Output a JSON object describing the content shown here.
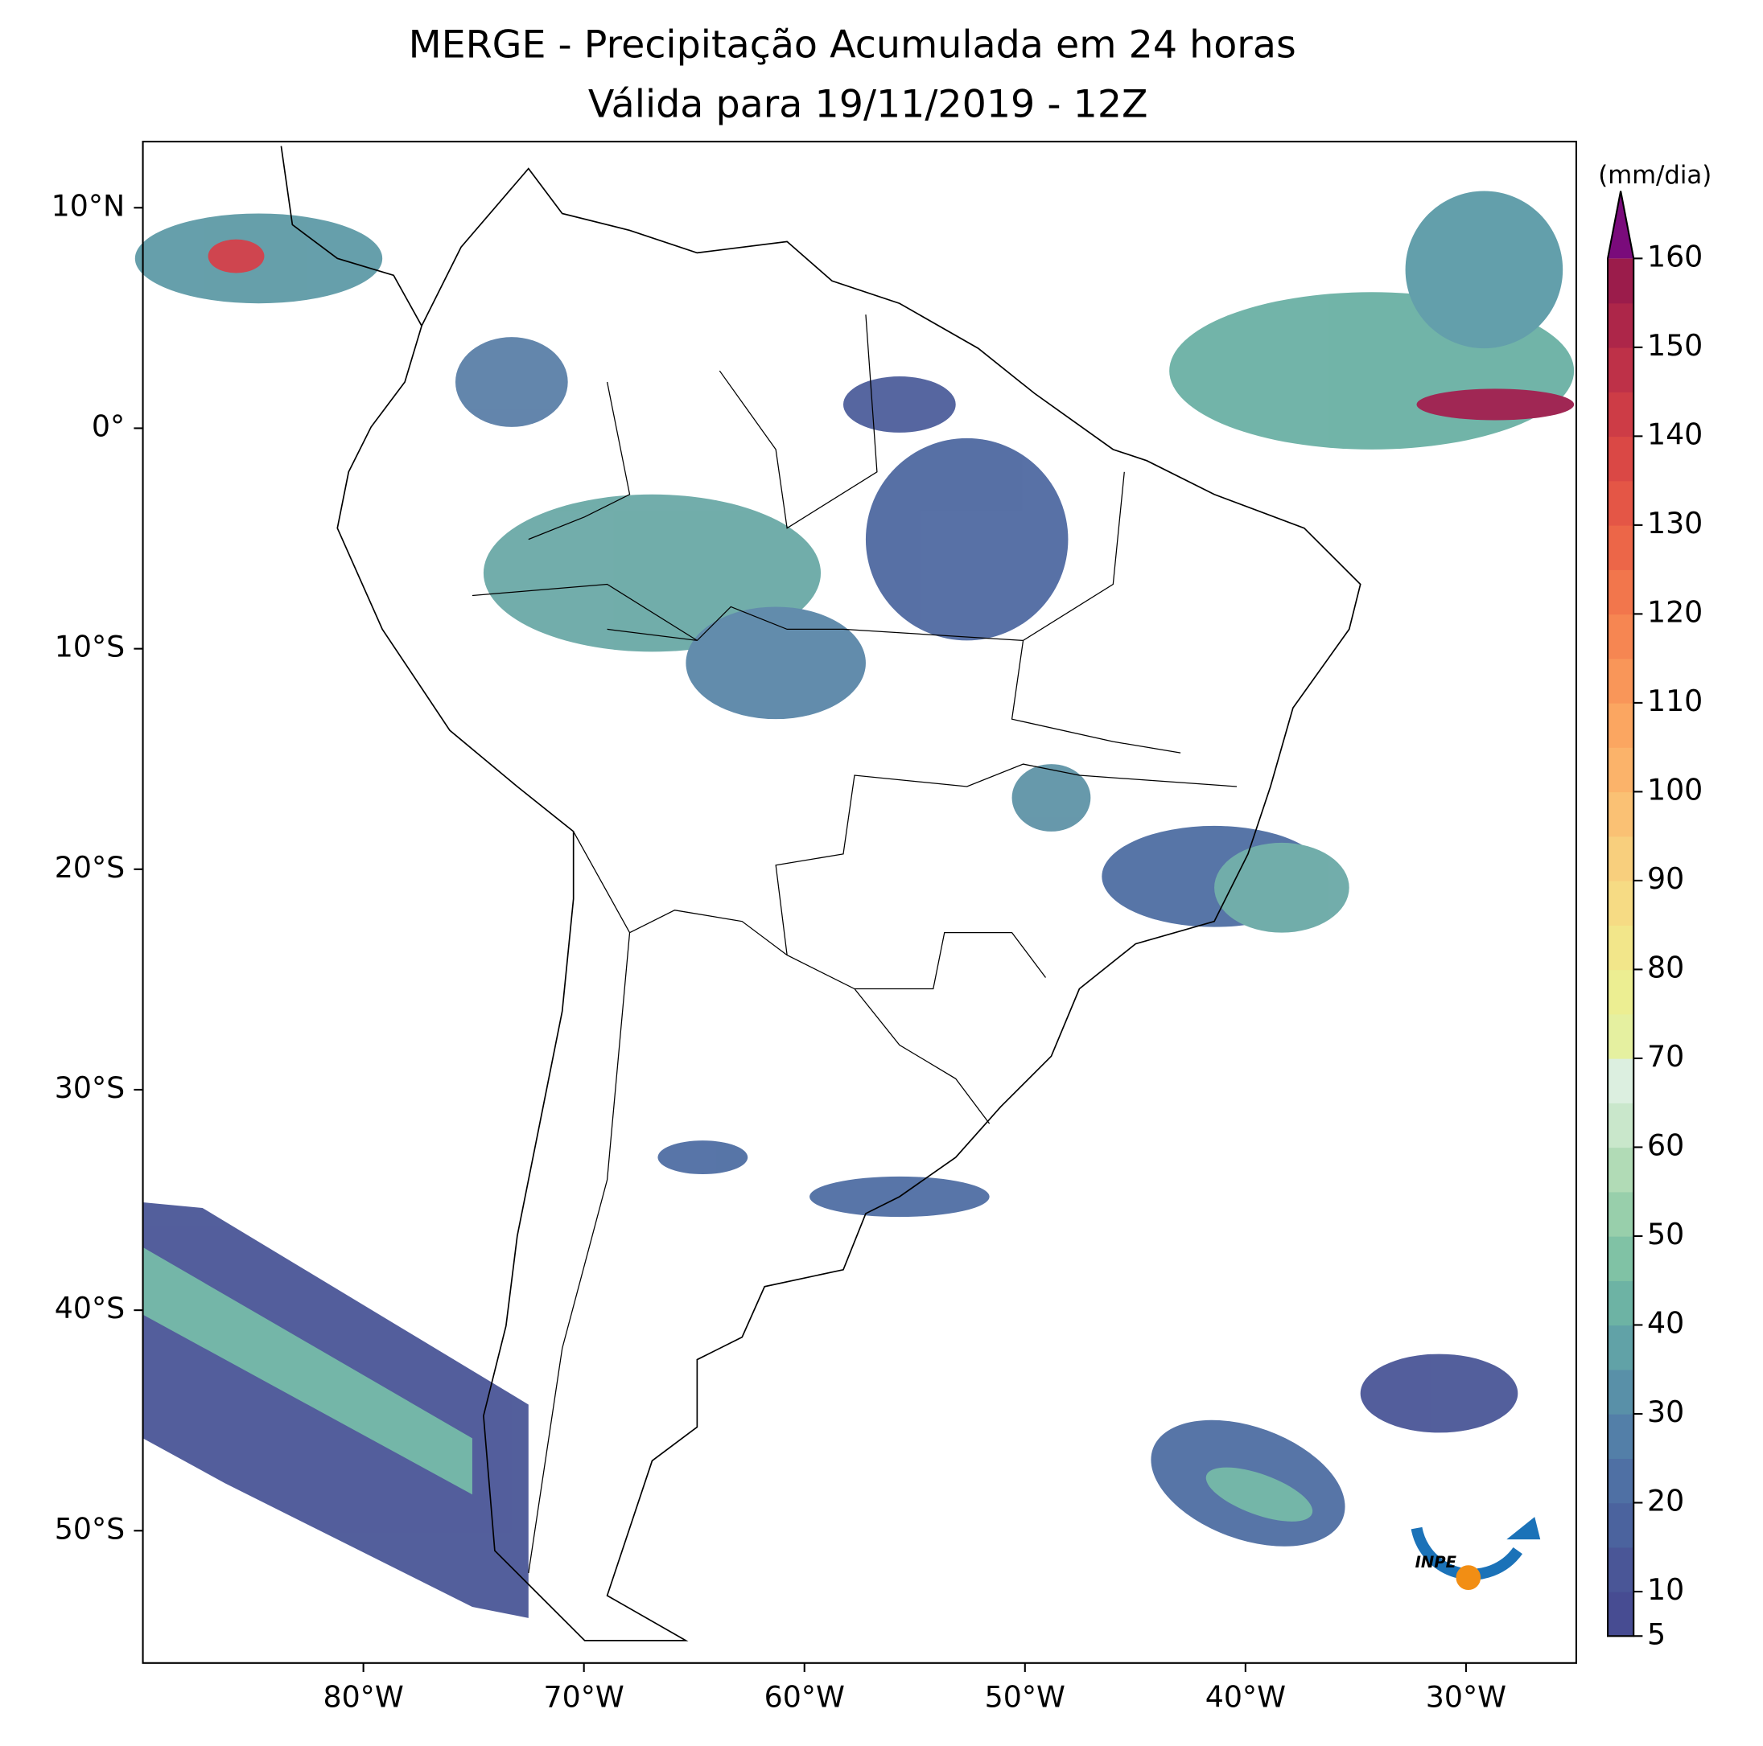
{
  "chart_data": {
    "type": "map",
    "title": "MERGE - Precipitação Acumulada em 24 horas",
    "subtitle": "Válida para 19/11/2019 - 12Z",
    "xlim": [
      -90,
      -25
    ],
    "ylim": [
      -56,
      13
    ],
    "xticks": [
      {
        "value": -80,
        "label": "80°W"
      },
      {
        "value": -70,
        "label": "70°W"
      },
      {
        "value": -60,
        "label": "60°W"
      },
      {
        "value": -50,
        "label": "50°W"
      },
      {
        "value": -40,
        "label": "40°W"
      },
      {
        "value": -30,
        "label": "30°W"
      }
    ],
    "yticks": [
      {
        "value": 10,
        "label": "10°N"
      },
      {
        "value": 0,
        "label": "0°"
      },
      {
        "value": -10,
        "label": "10°S"
      },
      {
        "value": -20,
        "label": "20°S"
      },
      {
        "value": -30,
        "label": "30°S"
      },
      {
        "value": -40,
        "label": "40°S"
      },
      {
        "value": -50,
        "label": "50°S"
      }
    ],
    "colorbar": {
      "label": "(mm/dia)",
      "lim": [
        5,
        160
      ],
      "ticks": [
        5,
        10,
        20,
        30,
        40,
        50,
        60,
        70,
        80,
        90,
        100,
        110,
        120,
        130,
        140,
        150,
        160
      ],
      "extend": "max",
      "over_color": "#7a0b7b",
      "colors": [
        "#474c92",
        "#4a5697",
        "#4b639e",
        "#4f70a4",
        "#537fa8",
        "#5990a8",
        "#61a2a7",
        "#6db3a4",
        "#80c2a5",
        "#98cfab",
        "#b1dbb6",
        "#c9e7cb",
        "#dcefe0",
        "#e5f0a0",
        "#ecee92",
        "#f2e68a",
        "#f6db84",
        "#f8cf7d",
        "#fac174",
        "#fbb36a",
        "#fba661",
        "#f99659",
        "#f68652",
        "#f2764c",
        "#ec6648",
        "#e45646",
        "#da4845",
        "#cd3c46",
        "#be3148",
        "#ad2649",
        "#9b1c4b"
      ]
    },
    "logo_text": "INPE"
  }
}
